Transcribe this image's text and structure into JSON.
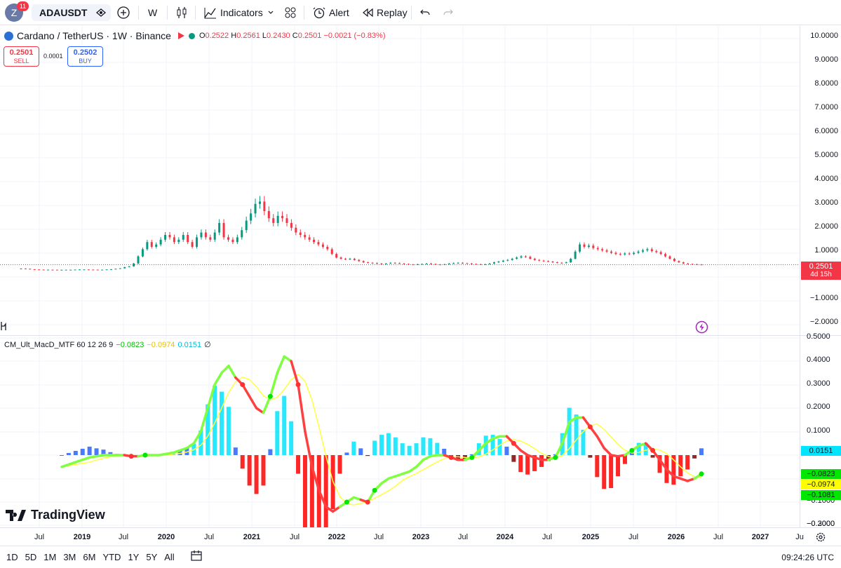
{
  "toolbar": {
    "avatar_letter": "Z",
    "notifications": "11",
    "symbol": "ADAUSDT",
    "interval": "W",
    "indicators_label": "Indicators",
    "alert_label": "Alert",
    "replay_label": "Replay"
  },
  "legend": {
    "title": "Cardano / TetherUS · 1W · Binance",
    "open_key": "O",
    "open": "0.2522",
    "high_key": "H",
    "high": "0.2561",
    "low_key": "L",
    "low": "0.2430",
    "close_key": "C",
    "close": "0.2501",
    "change": "−0.0021 (−0.83%)"
  },
  "trade": {
    "sell_price": "0.2501",
    "sell_label": "SELL",
    "buy_price": "0.2502",
    "buy_label": "BUY",
    "spread": "0.0001"
  },
  "price_axis": [
    "10.0000",
    "9.0000",
    "8.0000",
    "7.0000",
    "6.0000",
    "5.0000",
    "4.0000",
    "3.0000",
    "2.0000",
    "1.0000",
    "−1.0000",
    "−2.0000"
  ],
  "last_price": {
    "value": "0.2501",
    "countdown": "4d 15h"
  },
  "indicator": {
    "name": "CM_Ult_MacD_MTF 60 12 26 9",
    "v1": "−0.0823",
    "v2": "−0.0974",
    "v3": "0.0151",
    "suffix": "∅"
  },
  "indicator_axis": [
    "0.5000",
    "0.4000",
    "0.3000",
    "0.2000",
    "0.1000",
    "−0.1000",
    "−0.2000",
    "−0.3000"
  ],
  "indicator_tags": [
    {
      "value": "0.0151",
      "color": "#00e5ff"
    },
    {
      "value": "−0.0823",
      "color": "#00e600"
    },
    {
      "value": "−0.0974",
      "color": "#ffff00"
    },
    {
      "value": "−0.1081",
      "color": "#00e600"
    }
  ],
  "time_axis": [
    {
      "label": "Jul",
      "bold": false
    },
    {
      "label": "2019",
      "bold": true
    },
    {
      "label": "Jul",
      "bold": false
    },
    {
      "label": "2020",
      "bold": true
    },
    {
      "label": "Jul",
      "bold": false
    },
    {
      "label": "2021",
      "bold": true
    },
    {
      "label": "Jul",
      "bold": false
    },
    {
      "label": "2022",
      "bold": true
    },
    {
      "label": "Jul",
      "bold": false
    },
    {
      "label": "2023",
      "bold": true
    },
    {
      "label": "Jul",
      "bold": false
    },
    {
      "label": "2024",
      "bold": true
    },
    {
      "label": "Jul",
      "bold": false
    },
    {
      "label": "2025",
      "bold": true
    },
    {
      "label": "Jul",
      "bold": false
    },
    {
      "label": "2026",
      "bold": true
    },
    {
      "label": "Jul",
      "bold": false
    },
    {
      "label": "2027",
      "bold": true
    },
    {
      "label": "Ju",
      "bold": false
    }
  ],
  "ranges": [
    "1D",
    "5D",
    "1M",
    "3M",
    "6M",
    "YTD",
    "1Y",
    "5Y",
    "All"
  ],
  "clock": "09:24:26 UTC",
  "logo_text": "TradingView",
  "colors": {
    "up": "#089981",
    "down": "#f23645",
    "macd_up": "#7fff3f",
    "macd_down": "#ff4040",
    "signal": "#ffff40",
    "hist_up_strong": "#00e5ff",
    "hist_up_weak": "#2962ff",
    "hist_down_strong": "#ff0000",
    "hist_down_weak": "#800000"
  }
}
